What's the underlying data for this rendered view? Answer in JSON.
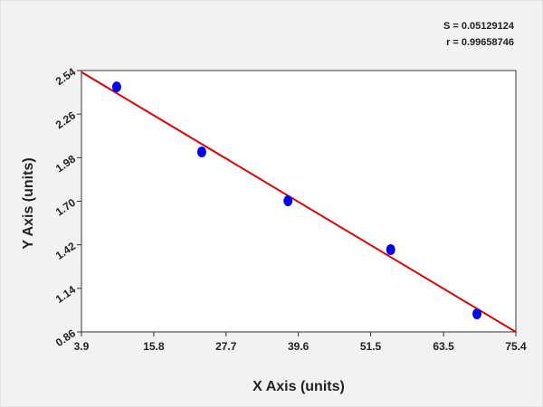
{
  "chart_data": {
    "type": "scatter",
    "stats": [
      "S = 0.05129124",
      "r = 0.99658746"
    ],
    "x_label": "X Axis (units)",
    "y_label": "Y Axis (units)",
    "xlim": [
      3.9,
      75.4
    ],
    "ylim": [
      0.86,
      2.54
    ],
    "xticks": [
      3.9,
      15.8,
      27.7,
      39.6,
      51.5,
      63.5,
      75.4
    ],
    "yticks": [
      0.86,
      1.14,
      1.42,
      {
        "value": 1.7,
        "label": "1.70"
      },
      1.98,
      2.26,
      2.54
    ],
    "x": [
      9.7,
      23.7,
      37.9,
      54.8,
      69.0
    ],
    "values": [
      2.435,
      2.017,
      1.703,
      1.389,
      0.976
    ],
    "color": "#0000ee",
    "fit_line": {
      "x": [
        3.9,
        75.4
      ],
      "values": [
        2.53,
        0.86
      ],
      "color": "#dd0000"
    }
  }
}
